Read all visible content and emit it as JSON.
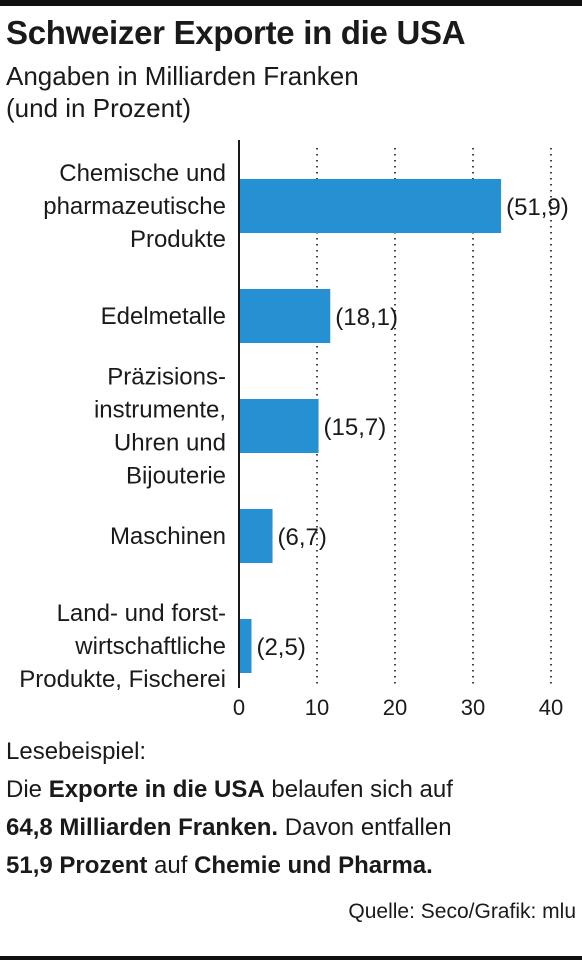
{
  "title": "Schweizer Exporte in die USA",
  "subtitle": [
    "Angaben in Milliarden Franken",
    "(und in Prozent)"
  ],
  "chart_data": {
    "type": "bar",
    "orientation": "horizontal",
    "categories": [
      [
        "Chemische und",
        "pharmazeutische",
        "Produkte"
      ],
      [
        "Edelmetalle"
      ],
      [
        "Präzisions-",
        "instrumente,",
        "Uhren und",
        "Bijouterie"
      ],
      [
        "Maschinen"
      ],
      [
        "Land- und forst-",
        "wirtschaftliche",
        "Produkte, Fischerei"
      ]
    ],
    "values": [
      33.6,
      11.7,
      10.2,
      4.3,
      1.6
    ],
    "data_labels": [
      "(51,9)",
      "(18,1)",
      "(15,7)",
      "(6,7)",
      "(2,5)"
    ],
    "xlim": [
      0,
      40
    ],
    "xticks": [
      0,
      10,
      20,
      30,
      40
    ],
    "grid": "vertical dotted",
    "colors": {
      "bar": "#2591d3",
      "axis": "#1a1a1a",
      "grid": "#444444"
    }
  },
  "lesebeispiel": [
    [
      {
        "text": "Lesebeispiel:",
        "bold": false
      }
    ],
    [
      {
        "text": "Die ",
        "bold": false
      },
      {
        "text": "Exporte in die USA",
        "bold": true
      },
      {
        "text": " belaufen sich auf",
        "bold": false
      }
    ],
    [
      {
        "text": "64,8 Milliarden Franken.",
        "bold": true
      },
      {
        "text": " Davon entfallen",
        "bold": false
      }
    ],
    [
      {
        "text": "51,9 Prozent",
        "bold": true
      },
      {
        "text": " auf ",
        "bold": false
      },
      {
        "text": "Chemie und Pharma.",
        "bold": true
      }
    ]
  ],
  "source": "Quelle: Seco/Grafik: mlu"
}
